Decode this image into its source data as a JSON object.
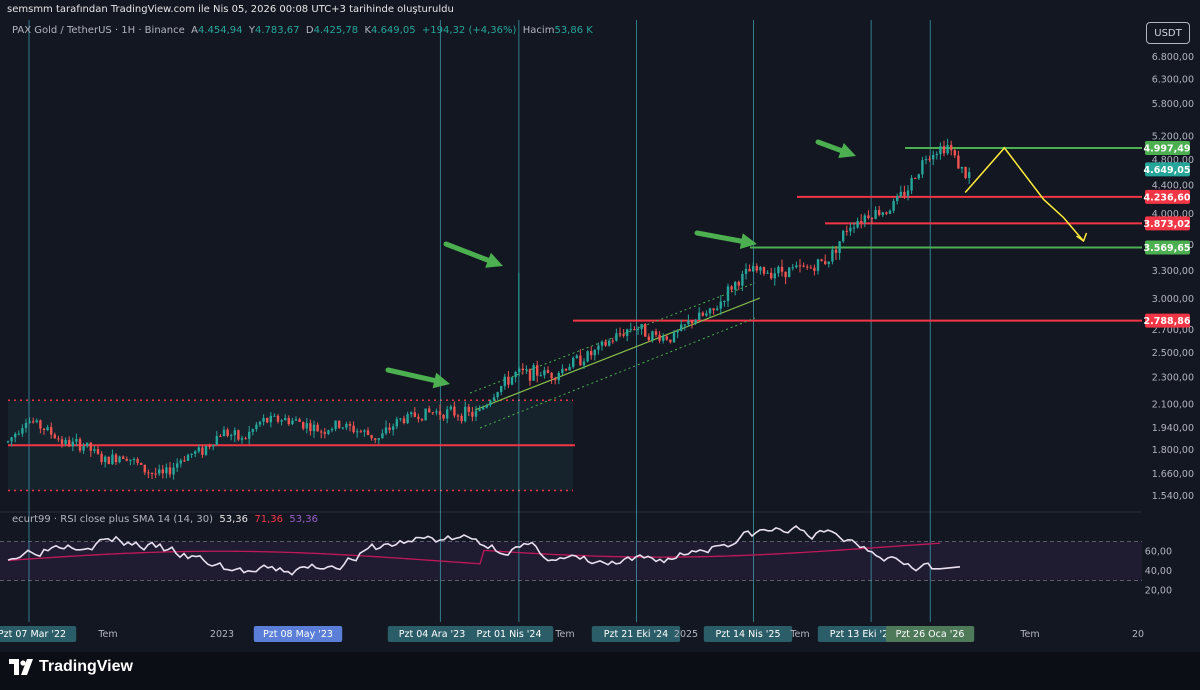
{
  "header": {
    "attribution": "semsmm tarafından TradingView.com ile Nis 05, 2026 00:08 UTC+3 tarihinde oluşturuldu",
    "symbol": "PAX Gold / TetherUS · 1H · Binance",
    "open_label": "A",
    "open": "4.454,94",
    "high_label": "Y",
    "high": "4.783,67",
    "low_label": "D",
    "low": "4.425,78",
    "close_label": "K",
    "close": "4.649,05",
    "change": "+194,32 (+4,36%)",
    "volume_label": "Hacim",
    "volume": "53,86 K",
    "currency_button": "USDT"
  },
  "rsi_panel": {
    "label": "ecurt99 · RSI close plus SMA 14 (14, 30)",
    "value_rsi": "53,36",
    "value_sma": "71,36",
    "value_third": "53,36",
    "ticks": [
      "60,00",
      "40,00",
      "20,00"
    ]
  },
  "footer": {
    "brand": "TradingView"
  },
  "colors": {
    "background": "#131722",
    "up": "#26a69a",
    "down": "#ef5350",
    "support_green": "#4caf50",
    "resistance_red": "#f23645",
    "projection_yellow": "#ffeb3b",
    "rsi_line": "#e8e0f0",
    "rsi_sma": "#c2185b",
    "vertical_line": "#4dd0e1",
    "axis_label": "#b2b5be"
  },
  "chart_data": {
    "type": "candlestick",
    "title": "PAX Gold / TetherUS · 1H · Binance",
    "y_scale": "log",
    "ylim": [
      1480,
      7200
    ],
    "y_ticks": [
      "6.800,00",
      "6.300,00",
      "5.800,00",
      "5.200,00",
      "4.800,00",
      "4.400,00",
      "4.000,00",
      "3.600,00",
      "3.300,00",
      "3.000,00",
      "2.700,00",
      "2.500,00",
      "2.300,00",
      "2.100,00",
      "1.940,00",
      "1.800,00",
      "1.660,00",
      "1.540,00"
    ],
    "x_ticks": [
      "Pzt 07 Mar '22",
      "Tem",
      "2023",
      "Pzt 08 May '23",
      "Pzt 04 Ara '23",
      "Pzt 01 Nis '24",
      "Tem",
      "Pzt 21 Eki '24",
      "2025",
      "Pzt 14 Nis '25",
      "Tem",
      "Pzt 13 Eki '25",
      "Pzt 26 Oca '26",
      "Tem",
      "20"
    ],
    "x_ticks_highlighted": [
      false,
      false,
      false,
      true,
      false,
      false,
      false,
      false,
      false,
      false,
      false,
      false,
      false,
      false,
      false
    ],
    "price_labels": [
      {
        "value": "4.997,49",
        "kind": "support"
      },
      {
        "value": "4.649,05",
        "kind": "last"
      },
      {
        "value": "4.236,60",
        "kind": "resistance"
      },
      {
        "value": "3.873,02",
        "kind": "resistance"
      },
      {
        "value": "3.569,65",
        "kind": "support"
      },
      {
        "value": "2.788,86",
        "kind": "resistance"
      }
    ],
    "vertical_markers": [
      "Pzt 07 Mar '22",
      "Pzt 04 Ara '23",
      "Pzt 01 Nis '24",
      "Pzt 21 Eki '24",
      "Pzt 14 Nis '25",
      "Pzt 13 Eki '25",
      "Pzt 26 Oca '26"
    ],
    "horizontal_levels": [
      {
        "price": 4997.49,
        "color": "support"
      },
      {
        "price": 4236.6,
        "color": "resistance"
      },
      {
        "price": 3873.02,
        "color": "resistance"
      },
      {
        "price": 3569.65,
        "color": "support"
      },
      {
        "price": 2788.86,
        "color": "resistance"
      },
      {
        "price": 1830,
        "color": "resistance"
      }
    ],
    "range_box": {
      "top": 2130,
      "bottom": 1570
    },
    "price_path": [
      [
        "2022-02",
        1850
      ],
      [
        "2022-03",
        2000
      ],
      [
        "2022-04",
        1930
      ],
      [
        "2022-05",
        1840
      ],
      [
        "2022-06",
        1830
      ],
      [
        "2022-07",
        1730
      ],
      [
        "2022-08",
        1780
      ],
      [
        "2022-09",
        1680
      ],
      [
        "2022-10",
        1650
      ],
      [
        "2022-11",
        1760
      ],
      [
        "2022-12",
        1800
      ],
      [
        "2023-01",
        1920
      ],
      [
        "2023-02",
        1860
      ],
      [
        "2023-03",
        1980
      ],
      [
        "2023-04",
        2000
      ],
      [
        "2023-05",
        1980
      ],
      [
        "2023-06",
        1920
      ],
      [
        "2023-07",
        1960
      ],
      [
        "2023-08",
        1920
      ],
      [
        "2023-09",
        1870
      ],
      [
        "2023-10",
        1990
      ],
      [
        "2023-11",
        2030
      ],
      [
        "2023-12",
        2050
      ],
      [
        "2024-01",
        2040
      ],
      [
        "2024-02",
        2030
      ],
      [
        "2024-03",
        2200
      ],
      [
        "2024-04",
        2330
      ],
      [
        "2024-05",
        2340
      ],
      [
        "2024-06",
        2330
      ],
      [
        "2024-07",
        2430
      ],
      [
        "2024-08",
        2500
      ],
      [
        "2024-09",
        2630
      ],
      [
        "2024-10",
        2740
      ],
      [
        "2024-11",
        2650
      ],
      [
        "2024-12",
        2630
      ],
      [
        "2025-01",
        2800
      ],
      [
        "2025-02",
        2860
      ],
      [
        "2025-03",
        3120
      ],
      [
        "2025-04",
        3300
      ],
      [
        "2025-05",
        3290
      ],
      [
        "2025-06",
        3310
      ],
      [
        "2025-07",
        3330
      ],
      [
        "2025-08",
        3440
      ],
      [
        "2025-09",
        3850
      ],
      [
        "2025-10",
        4000
      ],
      [
        "2025-11",
        4050
      ],
      [
        "2025-12",
        4350
      ],
      [
        "2026-01",
        4900
      ],
      [
        "2026-02",
        5050
      ],
      [
        "2026-03",
        4550
      ],
      [
        "2026-04",
        4649
      ]
    ],
    "projection_path": [
      [
        "2026-03",
        4300
      ],
      [
        "2026-05",
        5000
      ],
      [
        "2026-07",
        4200
      ],
      [
        "2026-08",
        3950
      ],
      [
        "2026-09",
        3650
      ]
    ],
    "rsi": {
      "ylim": [
        10,
        90
      ],
      "levels": [
        70,
        30
      ]
    }
  }
}
